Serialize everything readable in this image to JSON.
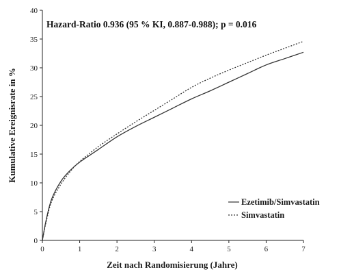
{
  "chart_data": {
    "type": "line",
    "annotation": "Hazard-Ratio 0.936 (95 % KI, 0.887-0.988); p = 0.016",
    "xlabel": "Zeit nach Randomisierung (Jahre)",
    "ylabel": "Kumulative Ereignisrate in %",
    "xlim": [
      0,
      7
    ],
    "ylim": [
      0,
      40
    ],
    "xticks": [
      0,
      1,
      2,
      3,
      4,
      5,
      6,
      7
    ],
    "yticks": [
      0,
      5,
      10,
      15,
      20,
      25,
      30,
      35,
      40
    ],
    "xtick_labels": [
      "0",
      "1",
      "2",
      "3",
      "4",
      "5",
      "6",
      "7"
    ],
    "ytick_labels": [
      "0",
      "5",
      "10",
      "15",
      "20",
      "25",
      "30",
      "35",
      "40"
    ],
    "grid": false,
    "legend_position": "bottom-right",
    "series": [
      {
        "name": "Ezetimib/Simvastatin",
        "line_style": "solid",
        "color": "#333333",
        "x": [
          0,
          0.1,
          0.25,
          0.5,
          0.75,
          1,
          1.5,
          2,
          2.5,
          3,
          3.5,
          4,
          4.5,
          5,
          5.5,
          6,
          6.5,
          7
        ],
        "y": [
          0,
          3.5,
          7.2,
          10.3,
          12.2,
          13.6,
          15.8,
          18.0,
          19.8,
          21.4,
          23.0,
          24.6,
          26.0,
          27.5,
          29.0,
          30.5,
          31.6,
          32.7
        ]
      },
      {
        "name": "Simvastatin",
        "line_style": "dotted",
        "color": "#333333",
        "x": [
          0,
          0.1,
          0.25,
          0.5,
          0.75,
          1,
          1.5,
          2,
          2.5,
          3,
          3.5,
          4,
          4.5,
          5,
          5.5,
          6,
          6.5,
          7
        ],
        "y": [
          0,
          3.2,
          6.8,
          9.8,
          12.0,
          13.7,
          16.3,
          18.5,
          20.6,
          22.6,
          24.6,
          26.6,
          28.2,
          29.6,
          30.9,
          32.2,
          33.4,
          34.6
        ]
      }
    ]
  }
}
